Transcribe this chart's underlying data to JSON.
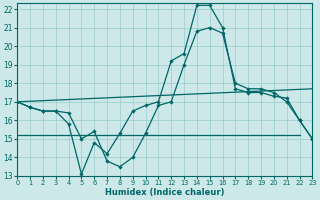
{
  "xlabel": "Humidex (Indice chaleur)",
  "bg_color": "#cce8e8",
  "grid_color": "#99cccc",
  "line_color": "#006666",
  "xlim": [
    0,
    23
  ],
  "ylim": [
    13,
    22.3
  ],
  "yticks": [
    13,
    14,
    15,
    16,
    17,
    18,
    19,
    20,
    21,
    22
  ],
  "xticks": [
    0,
    1,
    2,
    3,
    4,
    5,
    6,
    7,
    8,
    9,
    10,
    11,
    12,
    13,
    14,
    15,
    16,
    17,
    18,
    19,
    20,
    21,
    22,
    23
  ],
  "line1_x": [
    0,
    1,
    2,
    3,
    4,
    5,
    6,
    7,
    8,
    9,
    10,
    11,
    12,
    13,
    14,
    15,
    16,
    17,
    18,
    19,
    20,
    21,
    22,
    23
  ],
  "line1_y": [
    17.0,
    16.7,
    16.5,
    16.5,
    15.8,
    13.1,
    14.8,
    14.2,
    15.3,
    16.5,
    16.8,
    17.0,
    19.2,
    19.6,
    22.2,
    22.2,
    21.0,
    17.7,
    17.5,
    17.5,
    17.3,
    17.2,
    16.0,
    15.0
  ],
  "line2_x": [
    0,
    1,
    2,
    3,
    4,
    5,
    6,
    7,
    8,
    9,
    10,
    11,
    12,
    13,
    14,
    15,
    16,
    17,
    18,
    19,
    20,
    21,
    22,
    23
  ],
  "line2_y": [
    17.0,
    16.7,
    16.5,
    16.5,
    16.4,
    15.0,
    15.4,
    13.8,
    13.5,
    14.0,
    15.3,
    16.8,
    17.0,
    19.0,
    20.8,
    21.0,
    20.7,
    18.0,
    17.7,
    17.7,
    17.5,
    17.0,
    16.0,
    15.0
  ],
  "line3_x": [
    0,
    23
  ],
  "line3_y": [
    17.0,
    17.7
  ],
  "line4_x": [
    0,
    22
  ],
  "line4_y": [
    15.2,
    15.2
  ]
}
